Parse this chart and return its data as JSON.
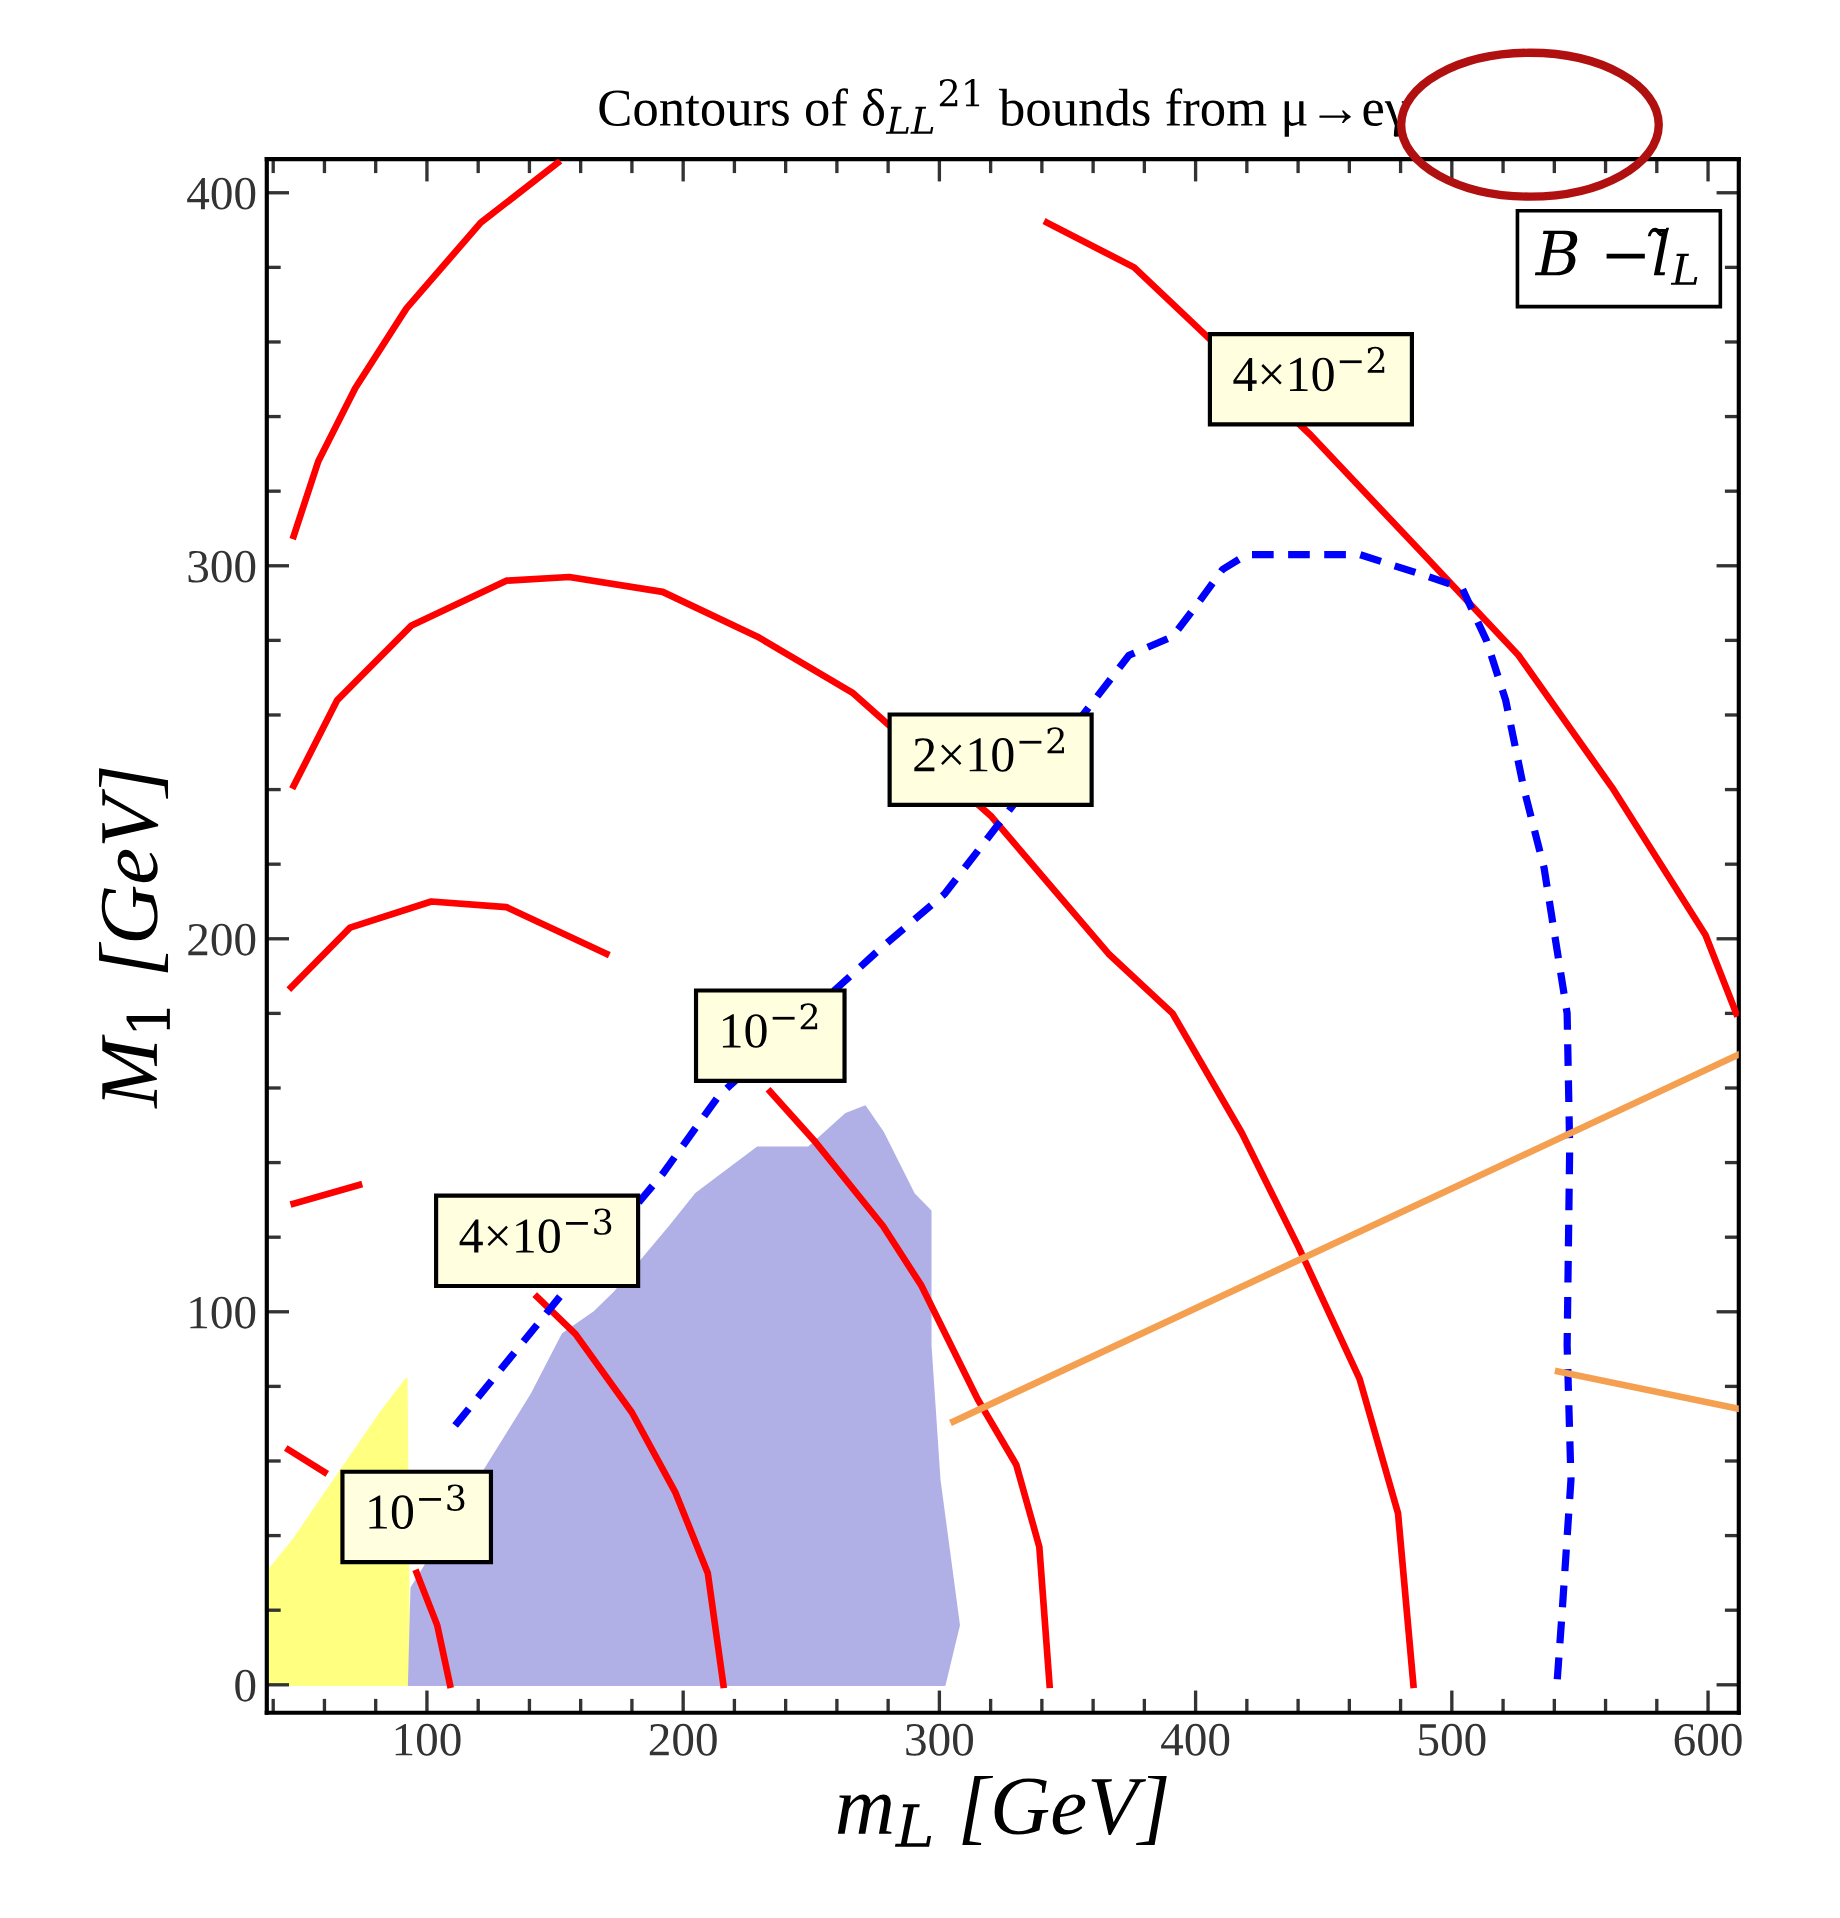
{
  "chart_data": {
    "type": "line",
    "title": "Contours of δ$_{LL}$$^{21}$ bounds from μ→eγ",
    "xlabel": "m$_{L}$ [GeV]",
    "ylabel": "M$_{1}$ [GeV]",
    "xlim": [
      37.5,
      612
    ],
    "ylim": [
      -7.5,
      409
    ],
    "xticks": [
      {
        "value": 40,
        "label": null
      },
      {
        "value": 60,
        "label": null
      },
      {
        "value": 80,
        "label": null
      },
      100,
      {
        "value": 120,
        "label": null
      },
      {
        "value": 140,
        "label": null
      },
      {
        "value": 160,
        "label": null
      },
      {
        "value": 180,
        "label": null
      },
      200,
      {
        "value": 220,
        "label": null
      },
      {
        "value": 240,
        "label": null
      },
      {
        "value": 260,
        "label": null
      },
      {
        "value": 280,
        "label": null
      },
      300,
      {
        "value": 320,
        "label": null
      },
      {
        "value": 340,
        "label": null
      },
      {
        "value": 360,
        "label": null
      },
      {
        "value": 380,
        "label": null
      },
      400,
      {
        "value": 420,
        "label": null
      },
      {
        "value": 440,
        "label": null
      },
      {
        "value": 460,
        "label": null
      },
      {
        "value": 480,
        "label": null
      },
      500,
      {
        "value": 520,
        "label": null
      },
      {
        "value": 540,
        "label": null
      },
      {
        "value": 560,
        "label": null
      },
      {
        "value": 580,
        "label": null
      },
      600
    ],
    "yticks": [
      0,
      {
        "value": 20,
        "label": null
      },
      {
        "value": 40,
        "label": null
      },
      {
        "value": 60,
        "label": null
      },
      {
        "value": 80,
        "label": null
      },
      100,
      {
        "value": 120,
        "label": null
      },
      {
        "value": 140,
        "label": null
      },
      {
        "value": 160,
        "label": null
      },
      {
        "value": 180,
        "label": null
      },
      200,
      {
        "value": 220,
        "label": null
      },
      {
        "value": 240,
        "label": null
      },
      {
        "value": 260,
        "label": null
      },
      {
        "value": 280,
        "label": null
      },
      300,
      {
        "value": 320,
        "label": null
      },
      {
        "value": 340,
        "label": null
      },
      {
        "value": 360,
        "label": null
      },
      {
        "value": 380,
        "label": null
      },
      400
    ],
    "series": [
      {
        "type": "area",
        "color": "#ffff80",
        "x": [
          37.5,
          37.5,
          48,
          82,
          92,
          93
        ],
        "values": [
          0,
          30,
          39,
          73,
          82,
          0
        ]
      },
      {
        "type": "area",
        "color": "#b0b0e6",
        "x": [
          93,
          94,
          141,
          153,
          165.5,
          173,
          195,
          205,
          229,
          249,
          263.5,
          271,
          278,
          290,
          296.5,
          296.5,
          300,
          307.6,
          302
        ],
        "values": [
          0,
          26,
          78,
          94,
          100,
          105,
          123,
          131.6,
          144,
          144,
          153,
          155,
          148,
          131.6,
          127,
          91,
          55,
          16,
          0
        ]
      },
      {
        "color": "#ff0000",
        "x": [
          46,
          60,
          75,
          85,
          96,
          104,
          109
        ],
        "values": [
          63,
          57,
          null,
          null,
          30,
          16,
          0
        ]
      },
      {
        "color": "#ff0000",
        "x": [
          48,
          73.5,
          104,
          143,
          158,
          180,
          197,
          209.6,
          215.7
        ],
        "values": [
          129,
          134,
          null,
          104,
          94,
          73,
          51.5,
          30,
          0
        ]
      },
      {
        "color": "#ff0000",
        "x": [
          47,
          70,
          101.7,
          131,
          170,
          197,
          234,
          251,
          278,
          293,
          315,
          330,
          339,
          343
        ],
        "values": [
          187,
          203,
          210,
          208.5,
          196,
          null,
          159,
          146,
          123,
          107,
          76.5,
          59,
          37,
          0
        ]
      },
      {
        "color": "#ff0000",
        "x": [
          48,
          65,
          94,
          131,
          155.5,
          192,
          229,
          266,
          320,
          366,
          391,
          418,
          440,
          464,
          479,
          485
        ],
        "values": [
          241,
          264,
          284,
          296,
          297,
          293,
          281,
          266,
          233,
          196,
          180,
          148,
          117.6,
          82,
          46,
          0
        ]
      },
      {
        "color": "#ff0000",
        "x": [
          48,
          57.6,
          72,
          92,
          121,
          151,
          298,
          342,
          376,
          396,
          445,
          489,
          526,
          562.5,
          599,
          611
        ],
        "values": [
          308,
          328,
          347.6,
          369,
          392,
          408,
          null,
          392,
          380,
          367,
          335,
          303,
          276,
          240.6,
          201,
          180
        ]
      },
      {
        "color": "#0000ff",
        "line_style": "dashed",
        "x": [
          111,
          153,
          192,
          214,
          278,
          302,
          374,
          391,
          401,
          410.5,
          420,
          464,
          489,
          504,
          513.5,
          521,
          528,
          536,
          545,
          546,
          545,
          546.5,
          543,
          541
        ],
        "values": [
          69.5,
          105,
          137,
          158,
          198,
          212,
          276,
          281,
          290,
          299,
          303,
          303,
          297.5,
          294,
          280,
          264,
          240.6,
          219,
          180,
          144,
          91,
          55,
          19,
          0
        ]
      },
      {
        "color": "#f5a050",
        "x": [
          305.5,
          612
        ],
        "values": [
          70.6,
          169
        ]
      },
      {
        "color": "#f5a050",
        "x": [
          541.5,
          612
        ],
        "values": [
          84,
          74
        ]
      }
    ],
    "annotations": [
      {
        "text": "10$^{−3}$",
        "x": 96,
        "y": 30
      },
      {
        "text": "4×10$^{−3}$",
        "x": 143,
        "y": 104
      },
      {
        "text": "10$^{−2}$",
        "x": 234,
        "y": 159
      },
      {
        "text": "2×10$^{−2}$",
        "x": 320,
        "y": 233
      },
      {
        "text": "4×10$^{−2}$",
        "x": 445,
        "y": 335
      },
      "B −l̃$_{L}$"
    ]
  }
}
